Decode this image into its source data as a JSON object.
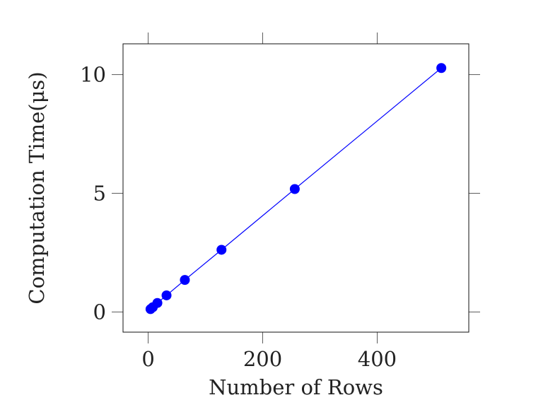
{
  "chart_data": {
    "type": "line",
    "xlabel": "Number of Rows",
    "ylabel": "Computation Time(μs)",
    "xlim": [
      -44,
      560
    ],
    "ylim": [
      -0.85,
      11.3
    ],
    "xticks": [
      0,
      200,
      400
    ],
    "yticks": [
      0,
      5,
      10
    ],
    "xtick_labels": [
      "0",
      "200",
      "400"
    ],
    "ytick_labels": [
      "0",
      "5",
      "10"
    ],
    "grid": false,
    "series": [
      {
        "color": "#0000ff",
        "x": [
          4,
          8,
          16,
          32,
          64,
          128,
          256,
          512
        ],
        "y": [
          0.12,
          0.2,
          0.38,
          0.7,
          1.35,
          2.62,
          5.18,
          10.28
        ]
      }
    ]
  }
}
